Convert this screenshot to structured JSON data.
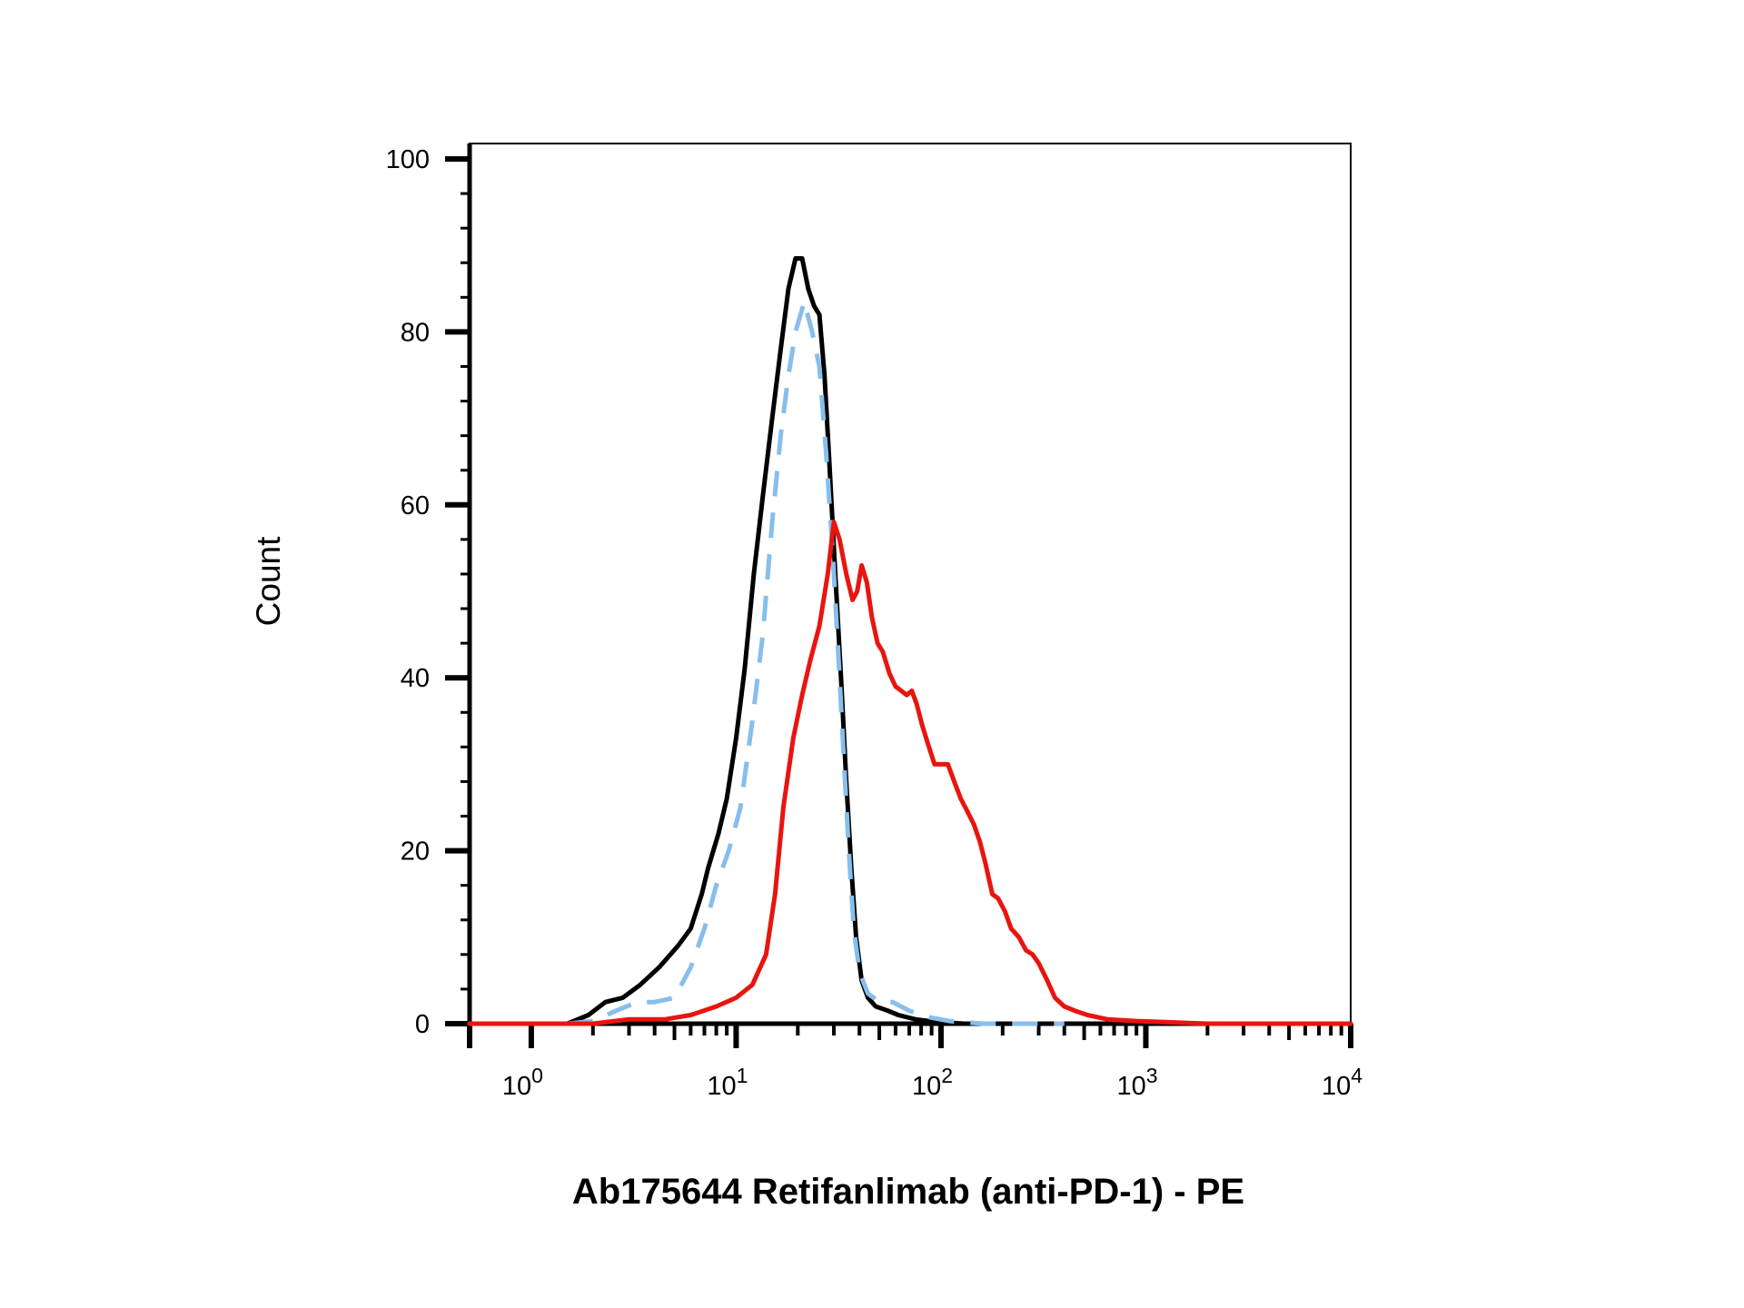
{
  "chart_data": {
    "type": "line",
    "xlabel": "Ab175644 Retifanlimab (anti-PD-1) - PE",
    "ylabel": "Count",
    "x_scale": "log",
    "xlim": [
      0.5,
      10000
    ],
    "ylim": [
      0,
      100
    ],
    "x_ticks": [
      {
        "base": "10",
        "exp": "0",
        "value": 1
      },
      {
        "base": "10",
        "exp": "1",
        "value": 10
      },
      {
        "base": "10",
        "exp": "2",
        "value": 100
      },
      {
        "base": "10",
        "exp": "3",
        "value": 1000
      },
      {
        "base": "10",
        "exp": "4",
        "value": 10000
      }
    ],
    "y_ticks": [
      0,
      20,
      40,
      60,
      80,
      100
    ],
    "grid": false,
    "series": [
      {
        "color": "#000000",
        "dash": "solid",
        "points": [
          [
            0.5,
            0
          ],
          [
            1.0,
            0
          ],
          [
            1.5,
            0
          ],
          [
            1.9,
            1
          ],
          [
            2.3,
            2.5
          ],
          [
            2.8,
            3
          ],
          [
            3.4,
            4.5
          ],
          [
            4.2,
            6.5
          ],
          [
            5.2,
            9
          ],
          [
            6.0,
            11
          ],
          [
            6.8,
            15
          ],
          [
            7.3,
            18
          ],
          [
            8.2,
            22
          ],
          [
            9.0,
            26
          ],
          [
            10.0,
            33
          ],
          [
            11.0,
            41
          ],
          [
            12.2,
            52
          ],
          [
            13.5,
            61
          ],
          [
            15.0,
            70
          ],
          [
            16.5,
            78
          ],
          [
            18.0,
            85
          ],
          [
            19.5,
            88.5
          ],
          [
            21.0,
            88.5
          ],
          [
            22.5,
            85
          ],
          [
            24.0,
            83
          ],
          [
            25.5,
            82
          ],
          [
            27.0,
            75
          ],
          [
            28.5,
            65
          ],
          [
            30.5,
            52
          ],
          [
            32.5,
            40
          ],
          [
            34.5,
            28
          ],
          [
            36.5,
            18
          ],
          [
            38.5,
            10
          ],
          [
            41.0,
            5
          ],
          [
            44.0,
            3
          ],
          [
            48.0,
            2
          ],
          [
            55.0,
            1.5
          ],
          [
            62.0,
            1
          ],
          [
            75.0,
            0.5
          ],
          [
            95.0,
            0.2
          ],
          [
            130.0,
            0
          ],
          [
            1000.0,
            0
          ],
          [
            10000.0,
            0
          ]
        ]
      },
      {
        "color": "#87BEEB",
        "dash": "dashed",
        "points": [
          [
            1.5,
            0
          ],
          [
            2.0,
            0.3
          ],
          [
            2.6,
            1.5
          ],
          [
            3.3,
            2.5
          ],
          [
            4.0,
            2.5
          ],
          [
            5.0,
            3
          ],
          [
            6.0,
            6.5
          ],
          [
            7.0,
            11
          ],
          [
            8.0,
            16
          ],
          [
            9.2,
            20
          ],
          [
            10.5,
            25
          ],
          [
            12.0,
            35
          ],
          [
            13.5,
            45
          ],
          [
            15.0,
            58
          ],
          [
            16.5,
            68
          ],
          [
            18.0,
            75
          ],
          [
            19.5,
            80
          ],
          [
            21.5,
            83.5
          ],
          [
            23.5,
            80
          ],
          [
            25.5,
            76
          ],
          [
            27.5,
            66
          ],
          [
            29.5,
            55
          ],
          [
            31.5,
            43
          ],
          [
            33.5,
            31
          ],
          [
            35.5,
            20
          ],
          [
            37.5,
            11
          ],
          [
            40.0,
            6
          ],
          [
            44.0,
            3.5
          ],
          [
            50.0,
            2.5
          ],
          [
            58.0,
            2.5
          ],
          [
            70.0,
            1.5
          ],
          [
            85.0,
            0.8
          ],
          [
            110.0,
            0.3
          ],
          [
            160.0,
            0
          ],
          [
            400.0,
            0
          ]
        ]
      },
      {
        "color": "#E8150F",
        "dash": "solid",
        "points": [
          [
            0.5,
            0
          ],
          [
            2.0,
            0
          ],
          [
            3.0,
            0.5
          ],
          [
            4.5,
            0.5
          ],
          [
            6.0,
            1
          ],
          [
            8.0,
            2
          ],
          [
            10.0,
            3
          ],
          [
            12.0,
            4.5
          ],
          [
            14.0,
            8
          ],
          [
            15.5,
            15
          ],
          [
            17.0,
            25
          ],
          [
            19.0,
            33
          ],
          [
            21.0,
            38
          ],
          [
            23.0,
            42
          ],
          [
            25.5,
            46
          ],
          [
            28.0,
            52
          ],
          [
            30.0,
            58
          ],
          [
            32.0,
            56
          ],
          [
            34.5,
            52
          ],
          [
            37.0,
            49
          ],
          [
            39.0,
            50
          ],
          [
            41.0,
            53
          ],
          [
            43.5,
            51
          ],
          [
            46.0,
            47
          ],
          [
            49.0,
            44
          ],
          [
            52.0,
            43
          ],
          [
            56.0,
            40.5
          ],
          [
            60.0,
            39
          ],
          [
            64.0,
            38.5
          ],
          [
            68.0,
            38
          ],
          [
            72.0,
            38.5
          ],
          [
            76.0,
            37
          ],
          [
            81.0,
            34.5
          ],
          [
            86.0,
            32.5
          ],
          [
            93.0,
            30
          ],
          [
            100.0,
            30
          ],
          [
            108.0,
            30
          ],
          [
            116.0,
            28
          ],
          [
            125.0,
            26
          ],
          [
            135.0,
            24.5
          ],
          [
            145.0,
            23
          ],
          [
            155.0,
            21
          ],
          [
            165.0,
            18.5
          ],
          [
            178.0,
            15
          ],
          [
            190.0,
            14.5
          ],
          [
            205.0,
            13
          ],
          [
            220.0,
            11
          ],
          [
            240.0,
            10
          ],
          [
            260.0,
            8.5
          ],
          [
            280.0,
            8
          ],
          [
            300.0,
            7
          ],
          [
            330.0,
            5
          ],
          [
            360.0,
            3
          ],
          [
            400.0,
            2
          ],
          [
            450.0,
            1.5
          ],
          [
            520.0,
            1
          ],
          [
            650.0,
            0.5
          ],
          [
            900.0,
            0.3
          ],
          [
            1200.0,
            0.2
          ],
          [
            2000.0,
            0
          ],
          [
            10000.0,
            0
          ]
        ]
      }
    ]
  }
}
